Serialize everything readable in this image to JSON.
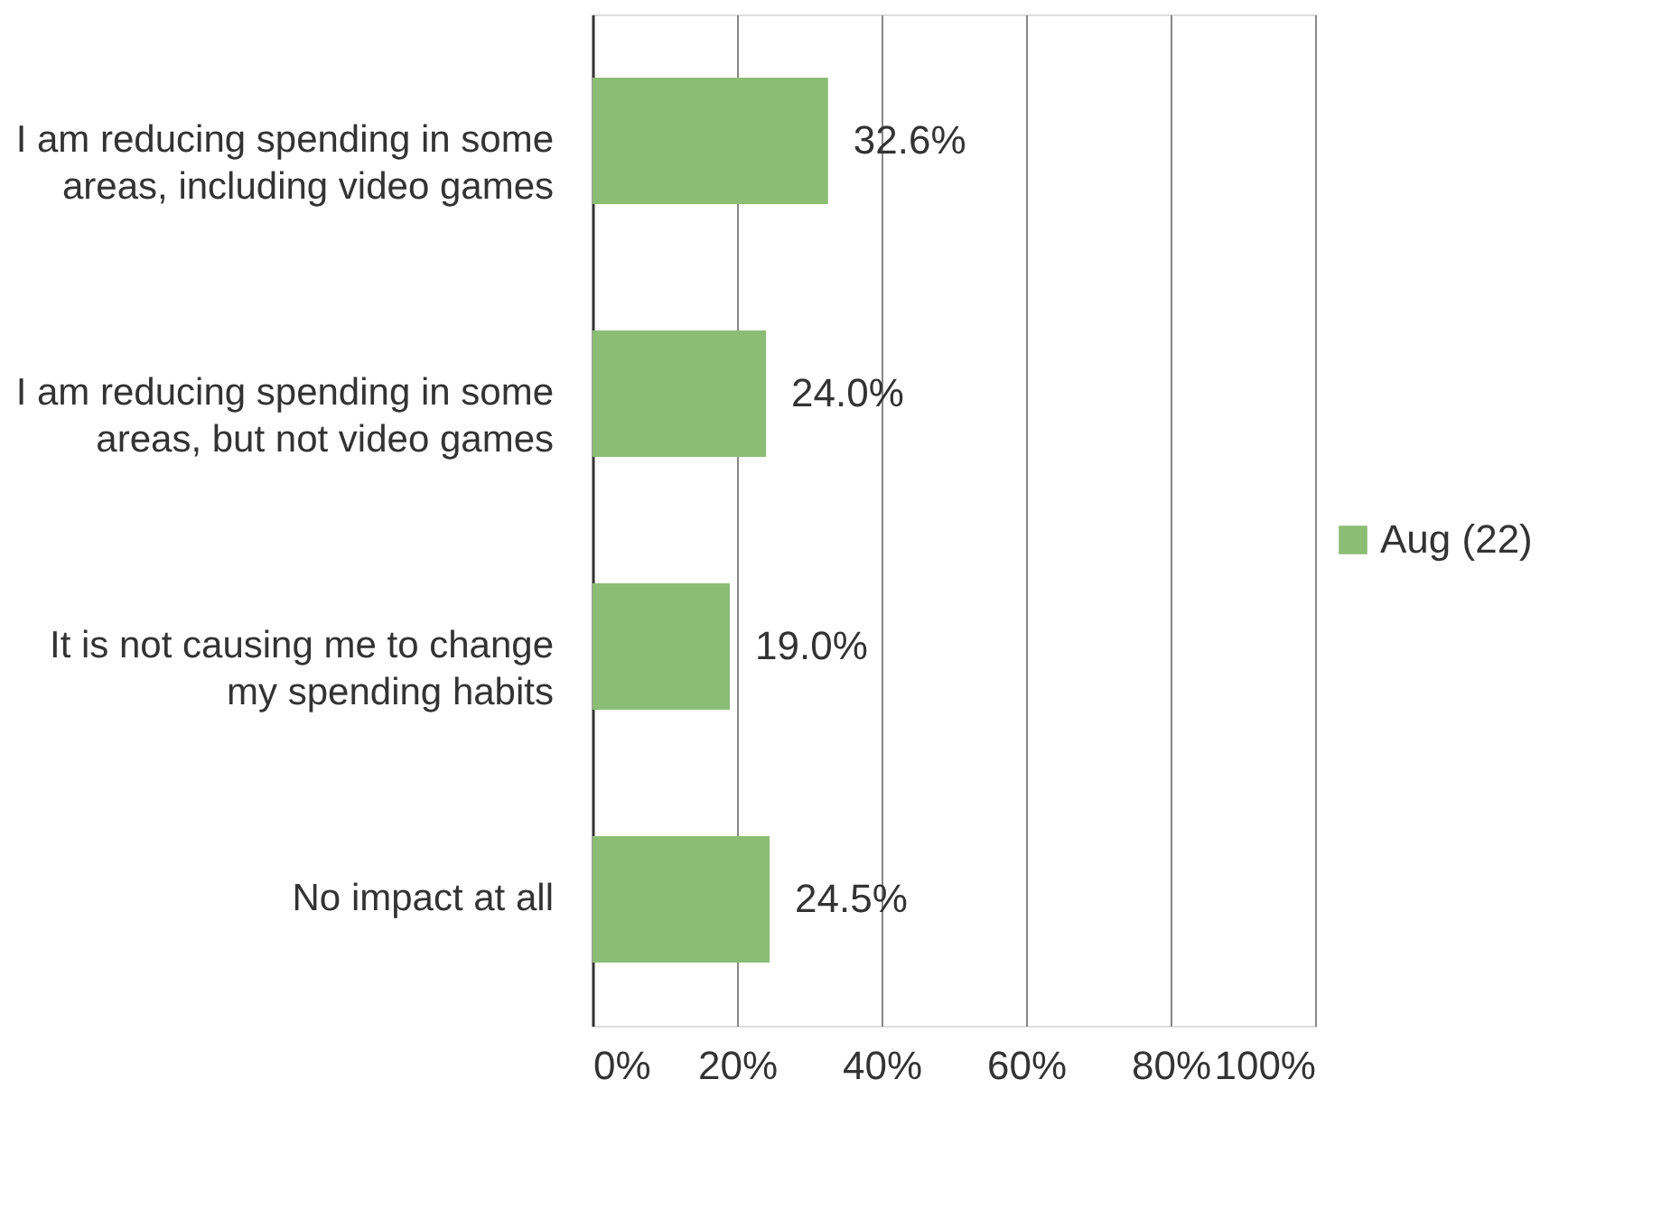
{
  "chart_data": {
    "type": "bar",
    "orientation": "horizontal",
    "categories": [
      "I am reducing spending in some areas, including video games",
      "I am reducing spending in some areas, but not video games",
      "It is not causing me to change my spending habits",
      "No impact at all"
    ],
    "series": [
      {
        "name": "Aug (22)",
        "color": "#8bbd75",
        "values": [
          32.6,
          24.0,
          19.0,
          24.5
        ],
        "value_labels": [
          "32.6%",
          "24.0%",
          "19.0%",
          "24.5%"
        ]
      }
    ],
    "xlim": [
      0,
      100
    ],
    "xticks": [
      {
        "value": 0,
        "label": "0%"
      },
      {
        "value": 20,
        "label": "20%"
      },
      {
        "value": 40,
        "label": "40%"
      },
      {
        "value": 60,
        "label": "60%"
      },
      {
        "value": 80,
        "label": "80%"
      },
      {
        "value": 100,
        "label": "100%"
      }
    ],
    "grid": "x",
    "legend": "right"
  }
}
